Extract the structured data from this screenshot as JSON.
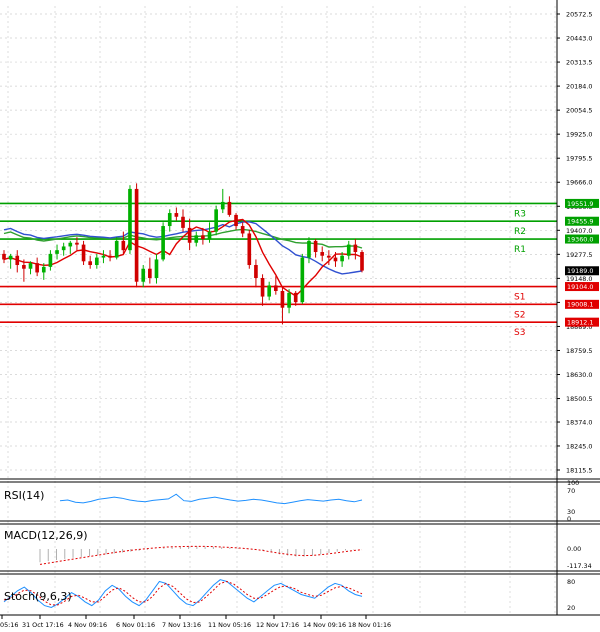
{
  "chart_data": {
    "type": "candlestick",
    "colors": {
      "up": "#00b000",
      "down": "#d00000",
      "ma_fast": "#e00000",
      "ma_mid": "#3050d0",
      "ma_slow": "#30a030",
      "resistance": "#00a000",
      "support": "#e00000",
      "rsi": "#1e90ff",
      "stoch_main": "#1e90ff",
      "stoch_signal": "#e00000",
      "macd_hist": "#b0b0b0",
      "macd_signal": "#e00000",
      "grid": "#cfcfcf",
      "current_price_bg": "#000000"
    },
    "price_axis": {
      "ylim": [
        18115.5,
        20572.5
      ],
      "ticks": [
        "20572.5",
        "20443.0",
        "20313.5",
        "20184.0",
        "20054.5",
        "19925.0",
        "19795.5",
        "19666.0",
        "19536.5",
        "19407.0",
        "19277.5",
        "19148.0",
        "19018.5",
        "18889.0",
        "18759.5",
        "18630.0",
        "18500.5",
        "18374.0",
        "18245.0",
        "18115.5"
      ]
    },
    "time_axis": {
      "labels": [
        "05:16",
        "31 Oct 17:16",
        "4 Nov 09:16",
        "6 Nov 01:16",
        "7 Nov 13:16",
        "11 Nov 05:16",
        "12 Nov 17:16",
        "14 Nov 09:16",
        "18 Nov 01:16"
      ]
    },
    "levels": [
      {
        "name": "R3",
        "value": 19551.9,
        "label": "19551.9",
        "kind": "resistance"
      },
      {
        "name": "R2",
        "value": 19455.9,
        "label": "19455.9",
        "kind": "resistance"
      },
      {
        "name": "R1",
        "value": 19360.0,
        "label": "19360.0",
        "kind": "resistance"
      },
      {
        "name": "S1",
        "value": 19104.0,
        "label": "19104.0",
        "kind": "support"
      },
      {
        "name": "S2",
        "value": 19008.1,
        "label": "19008.1",
        "kind": "support"
      },
      {
        "name": "S3",
        "value": 18912.1,
        "label": "18912.1",
        "kind": "support"
      }
    ],
    "current_price": {
      "value": 19189.0,
      "label": "19189.0"
    },
    "candles": [
      [
        19280,
        19300,
        19230,
        19250
      ],
      [
        19250,
        19280,
        19200,
        19270
      ],
      [
        19270,
        19300,
        19180,
        19220
      ],
      [
        19220,
        19250,
        19130,
        19200
      ],
      [
        19200,
        19240,
        19170,
        19230
      ],
      [
        19230,
        19260,
        19160,
        19180
      ],
      [
        19180,
        19230,
        19140,
        19210
      ],
      [
        19210,
        19300,
        19190,
        19280
      ],
      [
        19280,
        19330,
        19250,
        19300
      ],
      [
        19300,
        19340,
        19270,
        19320
      ],
      [
        19320,
        19350,
        19280,
        19340
      ],
      [
        19340,
        19370,
        19300,
        19330
      ],
      [
        19330,
        19350,
        19220,
        19240
      ],
      [
        19240,
        19270,
        19200,
        19220
      ],
      [
        19220,
        19280,
        19200,
        19260
      ],
      [
        19260,
        19300,
        19230,
        19270
      ],
      [
        19270,
        19300,
        19240,
        19260
      ],
      [
        19260,
        19370,
        19250,
        19350
      ],
      [
        19350,
        19400,
        19280,
        19300
      ],
      [
        19300,
        19650,
        19280,
        19630
      ],
      [
        19630,
        19660,
        19100,
        19130
      ],
      [
        19130,
        19220,
        19100,
        19200
      ],
      [
        19200,
        19260,
        19120,
        19150
      ],
      [
        19150,
        19280,
        19120,
        19250
      ],
      [
        19250,
        19450,
        19240,
        19430
      ],
      [
        19430,
        19520,
        19400,
        19500
      ],
      [
        19500,
        19530,
        19460,
        19480
      ],
      [
        19480,
        19520,
        19400,
        19420
      ],
      [
        19420,
        19470,
        19300,
        19340
      ],
      [
        19340,
        19400,
        19320,
        19380
      ],
      [
        19380,
        19420,
        19330,
        19360
      ],
      [
        19360,
        19450,
        19340,
        19400
      ],
      [
        19400,
        19540,
        19380,
        19520
      ],
      [
        19520,
        19630,
        19500,
        19560
      ],
      [
        19560,
        19590,
        19480,
        19490
      ],
      [
        19490,
        19500,
        19410,
        19430
      ],
      [
        19430,
        19450,
        19370,
        19390
      ],
      [
        19390,
        19410,
        19200,
        19220
      ],
      [
        19220,
        19250,
        19100,
        19150
      ],
      [
        19150,
        19170,
        19000,
        19050
      ],
      [
        19050,
        19130,
        19030,
        19110
      ],
      [
        19110,
        19160,
        19060,
        19080
      ],
      [
        19080,
        19100,
        18900,
        18990
      ],
      [
        18990,
        19090,
        18960,
        19070
      ],
      [
        19070,
        19080,
        19000,
        19020
      ],
      [
        19020,
        19280,
        19010,
        19260
      ],
      [
        19260,
        19370,
        19230,
        19350
      ],
      [
        19350,
        19360,
        19260,
        19290
      ],
      [
        19290,
        19320,
        19240,
        19270
      ],
      [
        19270,
        19300,
        19220,
        19260
      ],
      [
        19260,
        19290,
        19210,
        19240
      ],
      [
        19240,
        19290,
        19210,
        19270
      ],
      [
        19270,
        19350,
        19250,
        19330
      ],
      [
        19330,
        19360,
        19250,
        19290
      ],
      [
        19290,
        19300,
        19180,
        19190
      ]
    ],
    "indicators": {
      "rsi": {
        "label": "RSI(14)",
        "ticks": [
          "100",
          "70",
          "30",
          "0"
        ],
        "values": [
          48,
          50,
          44,
          42,
          46,
          52,
          55,
          58,
          55,
          50,
          47,
          45,
          49,
          51,
          53,
          66,
          48,
          46,
          52,
          55,
          58,
          54,
          50,
          47,
          49,
          52,
          50,
          46,
          42,
          40,
          44,
          48,
          51,
          49,
          47,
          50,
          52,
          48,
          45,
          50
        ]
      },
      "macd": {
        "label": "MACD(12,26,9)",
        "ticks": [
          "0.00",
          "-117.34"
        ],
        "hist": [
          -60,
          -55,
          -50,
          -45,
          -40,
          -36,
          -32,
          -28,
          -24,
          -20,
          -16,
          -12,
          -8,
          -4,
          0,
          4,
          8,
          10,
          12,
          12,
          11,
          10,
          8,
          6,
          4,
          2,
          -2,
          -8,
          -16,
          -24,
          -30,
          -34,
          -34,
          -30,
          -24,
          -18,
          -12,
          -6,
          -2,
          0
        ],
        "signal": [
          -70,
          -64,
          -58,
          -52,
          -46,
          -40,
          -34,
          -28,
          -22,
          -16,
          -11,
          -6,
          -2,
          2,
          5,
          8,
          10,
          11,
          12,
          12,
          12,
          11,
          9,
          7,
          5,
          2,
          -2,
          -7,
          -13,
          -19,
          -24,
          -28,
          -30,
          -29,
          -26,
          -22,
          -17,
          -12,
          -7,
          -3
        ]
      },
      "stoch": {
        "label": "Stoch(9,6,3)",
        "ticks": [
          "80",
          "20"
        ],
        "main": [
          30,
          45,
          60,
          70,
          55,
          35,
          20,
          15,
          25,
          40,
          55,
          45,
          30,
          20,
          35,
          60,
          75,
          65,
          45,
          30,
          20,
          35,
          60,
          85,
          80,
          60,
          40,
          25,
          20,
          35,
          55,
          75,
          90,
          85,
          70,
          55,
          40,
          30,
          45,
          60,
          75,
          80,
          70,
          60,
          50,
          45,
          40,
          55,
          70,
          80,
          75,
          60,
          50,
          45
        ],
        "signal": [
          35,
          40,
          52,
          62,
          60,
          48,
          32,
          22,
          22,
          32,
          45,
          48,
          40,
          30,
          30,
          45,
          62,
          68,
          58,
          42,
          30,
          30,
          45,
          68,
          80,
          72,
          55,
          38,
          28,
          30,
          45,
          62,
          80,
          85,
          78,
          65,
          50,
          40,
          40,
          50,
          62,
          72,
          72,
          66,
          56,
          50,
          45,
          48,
          58,
          68,
          72,
          68,
          60,
          52
        ]
      }
    }
  }
}
